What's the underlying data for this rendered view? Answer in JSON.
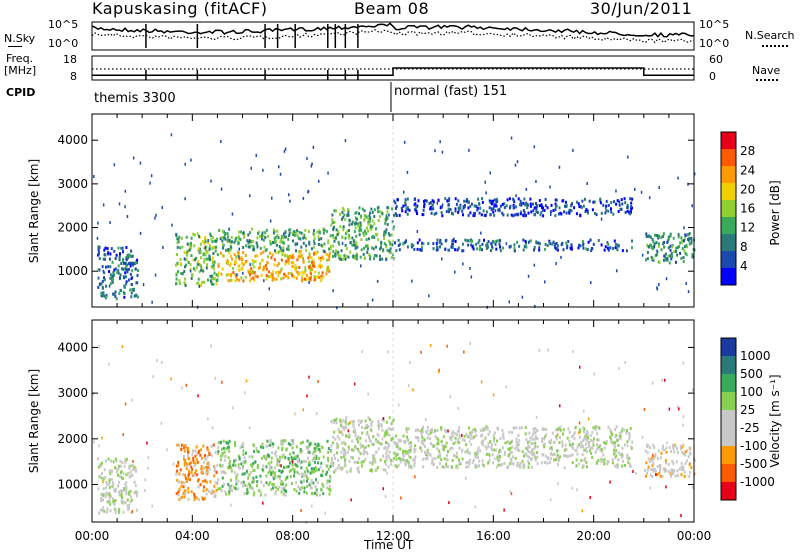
{
  "header": {
    "station": "Kapuskasing (fitACF)",
    "beam": "Beam 08",
    "date": "30/Jun/2011"
  },
  "left_labels": {
    "nsky": "N.Sky",
    "freq": "Freq.",
    "freq_unit": "[MHz]",
    "cpid": "CPID"
  },
  "right_labels": {
    "nsearch": "N.Search",
    "nave": "Nave"
  },
  "chart_data": [
    {
      "type": "line",
      "panel": "noise",
      "series": [
        {
          "name": "N.Sky"
        },
        {
          "name": "N.Search"
        }
      ],
      "y_ticks_left": [
        "10^5",
        "10^0"
      ],
      "y_ticks_right": [
        "10^5",
        "10^0"
      ],
      "x": [
        "00:00",
        "04:00",
        "08:00",
        "12:00",
        "16:00",
        "20:00",
        "00:00"
      ]
    },
    {
      "type": "line",
      "panel": "frequency",
      "series": [
        {
          "name": "Freq.",
          "x_hours": [
            0,
            12,
            12,
            22,
            22,
            24
          ],
          "values": [
            10,
            10,
            13,
            13,
            10,
            10
          ]
        },
        {
          "name": "Nave"
        }
      ],
      "y_ticks_left": [
        "18",
        "8"
      ],
      "y_ticks_right": [
        "60",
        "0"
      ],
      "ylim_left": [
        8,
        18
      ],
      "ylim_right": [
        0,
        60
      ]
    },
    {
      "type": "table",
      "panel": "cpid",
      "modes": [
        {
          "label": "themis 3300",
          "start_hour": 0
        },
        {
          "label": "normal (fast) 151",
          "start_hour": 12
        }
      ]
    },
    {
      "type": "heatmap",
      "panel": "power",
      "ylabel": "Slant Range [km]",
      "ylim": [
        180,
        4600
      ],
      "y_ticks": [
        1000,
        2000,
        3000,
        4000
      ],
      "xlim_hours": [
        0,
        24
      ],
      "colorbar": {
        "label": "Power [dB]",
        "ticks": [
          "28",
          "24",
          "20",
          "16",
          "12",
          "8",
          "4"
        ],
        "colors": [
          "#e8001a",
          "#ff5a00",
          "#ff9a00",
          "#f0d000",
          "#90d030",
          "#3aaa5a",
          "#2a7a7a",
          "#1a4ab0",
          "#0000ff"
        ]
      },
      "echo_regions": [
        {
          "x_hours": [
            0.2,
            1.8
          ],
          "range_km": [
            400,
            1600
          ],
          "level_db": 6
        },
        {
          "x_hours": [
            3.3,
            5.0
          ],
          "range_km": [
            700,
            1900
          ],
          "level_db": 14
        },
        {
          "x_hours": [
            5.0,
            9.5
          ],
          "range_km": [
            800,
            1500
          ],
          "level_db": 22
        },
        {
          "x_hours": [
            5.0,
            9.5
          ],
          "range_km": [
            1500,
            2000
          ],
          "level_db": 12
        },
        {
          "x_hours": [
            9.5,
            12.0
          ],
          "range_km": [
            1300,
            2500
          ],
          "level_db": 12
        },
        {
          "x_hours": [
            12.0,
            21.5
          ],
          "range_km": [
            1500,
            1750
          ],
          "level_db": 6
        },
        {
          "x_hours": [
            12.0,
            21.5
          ],
          "range_km": [
            2300,
            2700
          ],
          "level_db": 4
        },
        {
          "x_hours": [
            22.0,
            24.0
          ],
          "range_km": [
            1200,
            1900
          ],
          "level_db": 10
        }
      ]
    },
    {
      "type": "heatmap",
      "panel": "velocity",
      "ylabel": "Slant Range [km]",
      "ylim": [
        180,
        4600
      ],
      "y_ticks": [
        1000,
        2000,
        3000,
        4000
      ],
      "xlabel": "Time UT",
      "x_ticks": [
        "00:00",
        "04:00",
        "08:00",
        "12:00",
        "16:00",
        "20:00",
        "00:00"
      ],
      "xlim_hours": [
        0,
        24
      ],
      "colorbar": {
        "label": "Velocity [m s⁻¹]",
        "ticks": [
          "1000",
          "500",
          "100",
          "25",
          "-25",
          "-100",
          "-500",
          "-1000"
        ],
        "colors": [
          "#1a3aa0",
          "#2a7a7a",
          "#3aaa5a",
          "#8ad050",
          "#c8c8c8",
          "#c8c8c8",
          "#ff9a00",
          "#ff5a00",
          "#e8001a"
        ]
      },
      "echo_regions": [
        {
          "x_hours": [
            0.2,
            1.8
          ],
          "range_km": [
            400,
            1600
          ],
          "velocity": 0
        },
        {
          "x_hours": [
            3.3,
            5.0
          ],
          "range_km": [
            700,
            1900
          ],
          "velocity": -300
        },
        {
          "x_hours": [
            5.0,
            9.5
          ],
          "range_km": [
            800,
            2000
          ],
          "velocity": 150
        },
        {
          "x_hours": [
            9.5,
            12.0
          ],
          "range_km": [
            1300,
            2500
          ],
          "velocity": 0
        },
        {
          "x_hours": [
            12.0,
            21.5
          ],
          "range_km": [
            1400,
            2300
          ],
          "velocity": 0
        },
        {
          "x_hours": [
            22.0,
            24.0
          ],
          "range_km": [
            1200,
            1900
          ],
          "velocity": -100
        }
      ]
    }
  ]
}
